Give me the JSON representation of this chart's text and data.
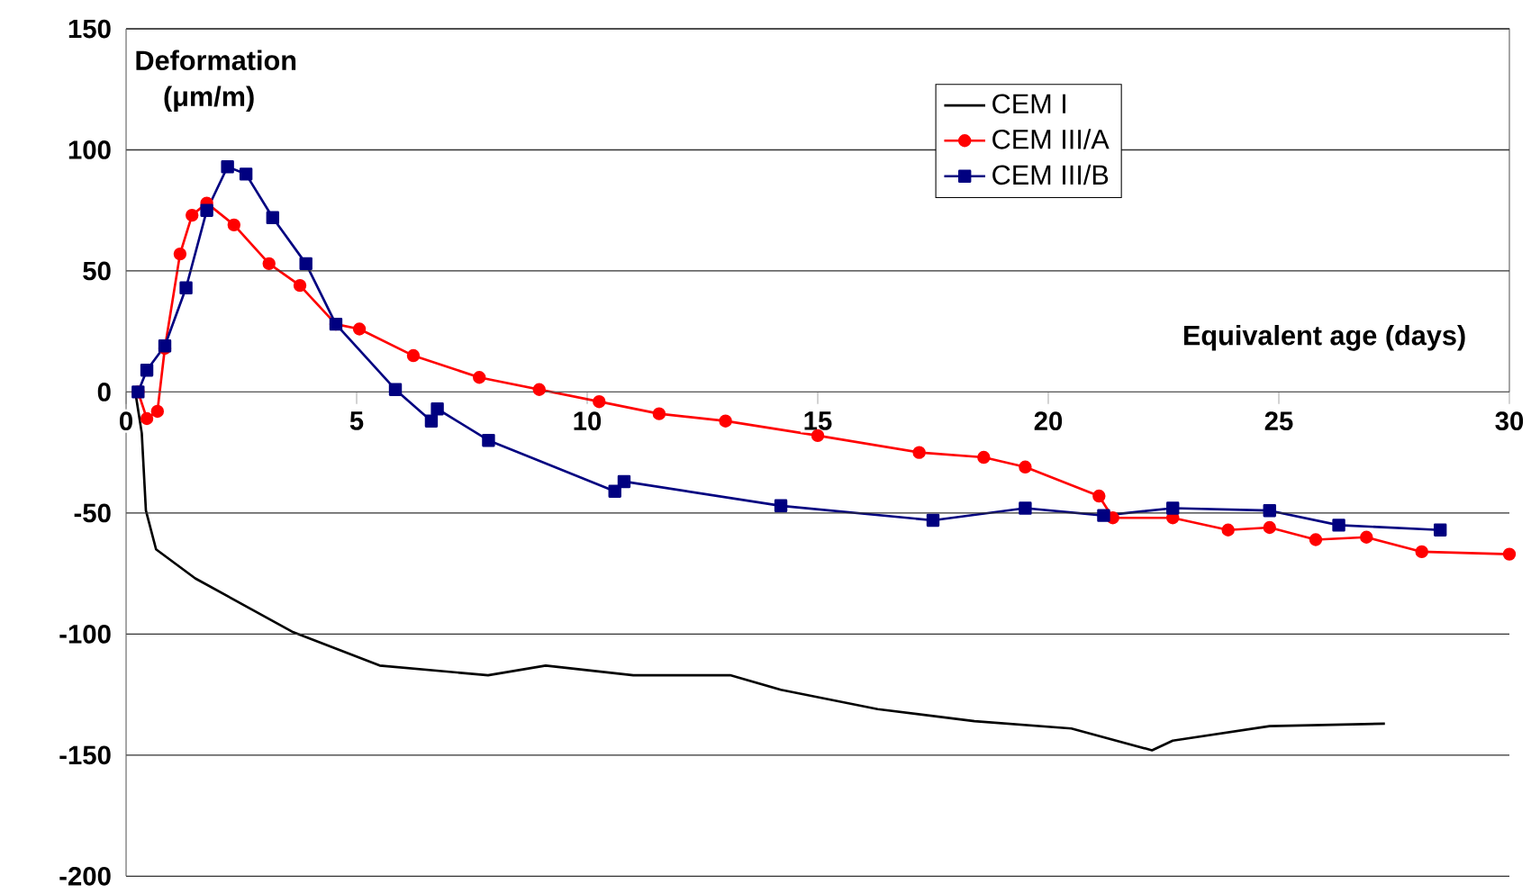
{
  "chart_data": {
    "type": "line",
    "xlabel": "Equivalent age (days)",
    "ylabel": "Deformation (μm/m)",
    "xlim": [
      0,
      30
    ],
    "xticks": [
      0,
      5,
      10,
      15,
      20,
      25,
      30
    ],
    "ylim": [
      -200,
      150
    ],
    "yticks": [
      -200,
      -150,
      -100,
      -50,
      0,
      50,
      100,
      150
    ],
    "grid": "y",
    "legend": "top",
    "line_style": "solid",
    "series": [
      {
        "name": "CEM I",
        "color": "#000000",
        "marker": "none",
        "x": [
          0.2,
          0.34,
          0.43,
          0.65,
          1.5,
          3.6,
          5.5,
          7.85,
          9.1,
          11.0,
          13.1,
          14.2,
          16.3,
          18.4,
          20.5,
          22.25,
          22.7,
          24.8,
          27.3
        ],
        "values": [
          0,
          -17,
          -49,
          -65,
          -77,
          -99,
          -113,
          -117,
          -113,
          -117,
          -117,
          -123,
          -131,
          -136,
          -139,
          -148,
          -144,
          -138,
          -137
        ]
      },
      {
        "name": "CEM III/A",
        "color": "#ff0000",
        "marker": "circle",
        "x": [
          0.26,
          0.45,
          0.68,
          0.84,
          1.17,
          1.43,
          1.75,
          2.34,
          3.1,
          3.77,
          4.55,
          5.06,
          6.23,
          7.66,
          8.96,
          10.26,
          11.56,
          13.0,
          15.0,
          17.2,
          18.6,
          19.5,
          21.1,
          21.4,
          22.7,
          23.9,
          24.8,
          25.8,
          26.9,
          28.1,
          30.0
        ],
        "values": [
          0,
          -11,
          -8,
          18,
          57,
          73,
          78,
          69,
          53,
          44,
          28,
          26,
          15,
          6,
          1,
          -4,
          -9,
          -12,
          -18,
          -25,
          -27,
          -31,
          -43,
          -52,
          -52,
          -57,
          -56,
          -61,
          -60,
          -66,
          -67
        ]
      },
      {
        "name": "CEM III/B",
        "color": "#000080",
        "marker": "square",
        "x": [
          0.26,
          0.45,
          0.84,
          1.3,
          1.75,
          2.2,
          2.6,
          3.18,
          3.9,
          4.55,
          5.84,
          6.62,
          6.75,
          7.86,
          10.6,
          10.8,
          14.2,
          17.5,
          19.5,
          21.2,
          22.7,
          24.8,
          26.3,
          28.5
        ],
        "values": [
          0,
          9,
          19,
          43,
          75,
          93,
          90,
          72,
          53,
          28,
          1,
          -12,
          -7,
          -20,
          -41,
          -37,
          -47,
          -53,
          -48,
          -51,
          -48,
          -49,
          -55,
          -57
        ]
      }
    ]
  }
}
